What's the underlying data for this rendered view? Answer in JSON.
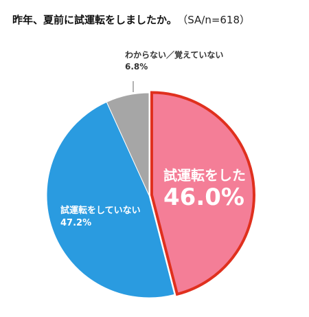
{
  "title": "昨年、夏前に試運転をしましたか。",
  "sample_note": "（SA/n=618）",
  "chart_data": {
    "type": "pie",
    "title": "昨年、夏前に試運転をしましたか。",
    "slices": [
      {
        "label": "試運転をした",
        "value": 46.0,
        "display": "46.0%",
        "color": "#f47e97",
        "highlighted": true
      },
      {
        "label": "試運転をしていない",
        "value": 47.2,
        "display": "47.2%",
        "color": "#2a9be0"
      },
      {
        "label": "わからない／覚えていない",
        "value": 6.8,
        "display": "6.8%",
        "color": "#a6a6a6"
      }
    ],
    "highlight_color": "#e0301e",
    "legend": "none"
  }
}
